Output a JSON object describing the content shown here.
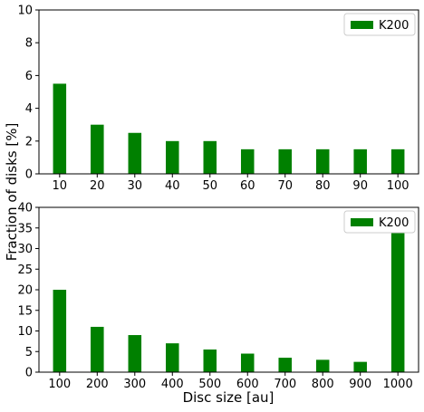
{
  "figure": {
    "shared_ylabel": "Fraction of disks [%]",
    "shared_xlabel": "Disc size [au]"
  },
  "chart_data": [
    {
      "type": "bar",
      "categories": [
        "10",
        "20",
        "30",
        "40",
        "50",
        "60",
        "70",
        "80",
        "90",
        "100"
      ],
      "series": [
        {
          "name": "K200",
          "values": [
            5.5,
            3.0,
            2.5,
            2.0,
            2.0,
            1.5,
            1.5,
            1.5,
            1.5,
            1.5
          ],
          "color": "#008000"
        }
      ],
      "ylim": [
        0,
        10
      ],
      "yticks": [
        0,
        2,
        4,
        6,
        8,
        10
      ],
      "legend": "top-right",
      "grid": false
    },
    {
      "type": "bar",
      "categories": [
        "100",
        "200",
        "300",
        "400",
        "500",
        "600",
        "700",
        "800",
        "900",
        "1000"
      ],
      "series": [
        {
          "name": "K200",
          "values": [
            20,
            11,
            9,
            7,
            5.5,
            4.5,
            3.5,
            3,
            2.5,
            35
          ],
          "color": "#008000"
        }
      ],
      "ylim": [
        0,
        40
      ],
      "yticks": [
        0,
        5,
        10,
        15,
        20,
        25,
        30,
        35,
        40
      ],
      "legend": "top-right",
      "grid": false
    }
  ]
}
